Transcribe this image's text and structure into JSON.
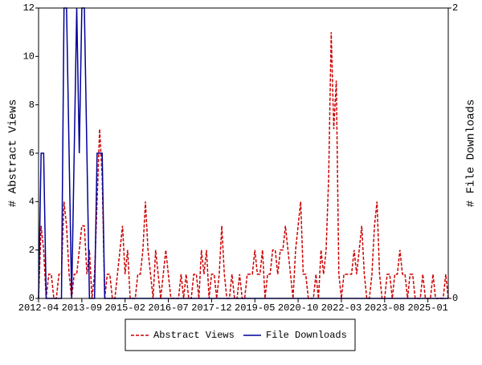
{
  "chart_data": {
    "type": "line",
    "x": [
      "2012-04",
      "2012-05",
      "2012-06",
      "2012-07",
      "2012-08",
      "2012-09",
      "2012-10",
      "2012-11",
      "2012-12",
      "2013-01",
      "2013-02",
      "2013-03",
      "2013-04",
      "2013-05",
      "2013-06",
      "2013-07",
      "2013-08",
      "2013-09",
      "2013-10",
      "2013-11",
      "2013-12",
      "2014-01",
      "2014-02",
      "2014-03",
      "2014-04",
      "2014-05",
      "2014-06",
      "2014-07",
      "2014-08",
      "2014-09",
      "2014-10",
      "2014-11",
      "2014-12",
      "2015-01",
      "2015-02",
      "2015-03",
      "2015-04",
      "2015-05",
      "2015-06",
      "2015-07",
      "2015-08",
      "2015-09",
      "2015-10",
      "2015-11",
      "2015-12",
      "2016-01",
      "2016-02",
      "2016-03",
      "2016-04",
      "2016-05",
      "2016-06",
      "2016-07",
      "2016-08",
      "2016-09",
      "2016-10",
      "2016-11",
      "2016-12",
      "2017-01",
      "2017-02",
      "2017-03",
      "2017-04",
      "2017-05",
      "2017-06",
      "2017-07",
      "2017-08",
      "2017-09",
      "2017-10",
      "2017-11",
      "2017-12",
      "2018-01",
      "2018-02",
      "2018-03",
      "2018-04",
      "2018-05",
      "2018-06",
      "2018-07",
      "2018-08",
      "2018-09",
      "2018-10",
      "2018-11",
      "2018-12",
      "2019-01",
      "2019-02",
      "2019-03",
      "2019-04",
      "2019-05",
      "2019-06",
      "2019-07",
      "2019-08",
      "2019-09",
      "2019-10",
      "2019-11",
      "2019-12",
      "2020-01",
      "2020-02",
      "2020-03",
      "2020-04",
      "2020-05",
      "2020-06",
      "2020-07",
      "2020-08",
      "2020-09",
      "2020-10",
      "2020-11",
      "2020-12",
      "2021-01",
      "2021-02",
      "2021-03",
      "2021-04",
      "2021-05",
      "2021-06",
      "2021-07",
      "2021-08",
      "2021-09",
      "2021-10",
      "2021-11",
      "2021-12",
      "2022-01",
      "2022-02",
      "2022-03",
      "2022-04",
      "2022-05",
      "2022-06",
      "2022-07",
      "2022-08",
      "2022-09",
      "2022-10",
      "2022-11",
      "2022-12",
      "2023-01",
      "2023-02",
      "2023-03",
      "2023-04",
      "2023-05",
      "2023-06",
      "2023-07",
      "2023-08",
      "2023-09",
      "2023-10",
      "2023-11",
      "2023-12",
      "2024-01",
      "2024-02",
      "2024-03",
      "2024-04",
      "2024-05",
      "2024-06",
      "2024-07",
      "2024-08",
      "2024-09",
      "2024-10",
      "2024-11",
      "2024-12",
      "2025-01",
      "2025-02",
      "2025-03",
      "2025-04",
      "2025-05",
      "2025-06",
      "2025-07",
      "2025-08",
      "2025-09"
    ],
    "series": [
      {
        "name": "Abstract Views",
        "color": "#cc0000",
        "axis": "y",
        "dashed": true,
        "values": [
          0,
          3,
          2,
          0,
          1,
          1,
          0,
          0,
          1,
          1,
          4,
          3,
          1,
          0,
          1,
          1,
          2,
          3,
          3,
          1,
          2,
          0,
          1,
          4,
          7,
          5,
          0,
          1,
          1,
          0,
          0,
          1,
          2,
          3,
          1,
          2,
          0,
          0,
          0,
          1,
          1,
          2,
          4,
          2,
          1,
          0,
          2,
          1,
          0,
          1,
          2,
          1,
          0,
          0,
          0,
          0,
          1,
          0,
          1,
          0,
          0,
          1,
          1,
          0,
          2,
          1,
          2,
          0,
          1,
          1,
          0,
          1,
          3,
          1,
          0,
          0,
          1,
          0,
          0,
          1,
          0,
          0,
          1,
          1,
          1,
          2,
          1,
          1,
          2,
          0,
          1,
          1,
          2,
          2,
          1,
          2,
          2,
          3,
          2,
          1,
          0,
          2,
          3,
          4,
          1,
          1,
          0,
          0,
          0,
          1,
          0,
          2,
          1,
          2,
          5,
          11,
          7,
          9,
          1,
          0,
          1,
          1,
          1,
          1,
          2,
          1,
          2,
          3,
          1,
          0,
          0,
          1,
          3,
          4,
          1,
          0,
          0,
          1,
          1,
          0,
          1,
          1,
          2,
          1,
          1,
          0,
          1,
          1,
          0,
          0,
          0,
          1,
          0,
          0,
          0,
          1,
          0,
          0,
          0,
          0,
          1,
          0
        ]
      },
      {
        "name": "File Downloads",
        "color": "#000099",
        "axis": "y2",
        "dashed": false,
        "values": [
          0,
          1,
          1,
          0,
          0,
          0,
          0,
          0,
          0,
          0,
          2,
          2,
          1,
          0,
          1,
          2,
          1,
          2,
          2,
          1,
          0,
          0,
          0,
          1,
          1,
          1,
          0,
          0,
          0,
          0,
          0,
          0,
          0,
          0,
          0,
          0,
          0,
          0,
          0,
          0,
          0,
          0,
          0,
          0,
          0,
          0,
          0,
          0,
          0,
          0,
          0,
          0,
          0,
          0,
          0,
          0,
          0,
          0,
          0,
          0,
          0,
          0,
          0,
          0,
          0,
          0,
          0,
          0,
          0,
          0,
          0,
          0,
          0,
          0,
          0,
          0,
          0,
          0,
          0,
          0,
          0,
          0,
          0,
          0,
          0,
          0,
          0,
          0,
          0,
          0,
          0,
          0,
          0,
          0,
          0,
          0,
          0,
          0,
          0,
          0,
          0,
          0,
          0,
          0,
          0,
          0,
          0,
          0,
          0,
          0,
          0,
          0,
          0,
          0,
          0,
          0,
          0,
          0,
          0,
          0,
          0,
          0,
          0,
          0,
          0,
          0,
          0,
          0,
          0,
          0,
          0,
          0,
          0,
          0,
          0,
          0,
          0,
          0,
          0,
          0,
          0,
          0,
          0,
          0,
          0,
          0,
          0,
          0,
          0,
          0,
          0,
          0,
          0,
          0,
          0,
          0,
          0,
          0,
          0,
          0,
          0,
          0
        ]
      }
    ],
    "ylabel": "# Abstract Views",
    "y2label": "# File Downloads",
    "ylim": [
      0,
      12
    ],
    "yticks": [
      0,
      2,
      4,
      6,
      8,
      10,
      12
    ],
    "y2lim": [
      0,
      2
    ],
    "y2ticks": [
      0,
      2
    ],
    "xticks": [
      "2012-04",
      "2013-09",
      "2015-02",
      "2016-07",
      "2017-12",
      "2019-05",
      "2020-10",
      "2022-03",
      "2023-08",
      "2025-01"
    ]
  }
}
